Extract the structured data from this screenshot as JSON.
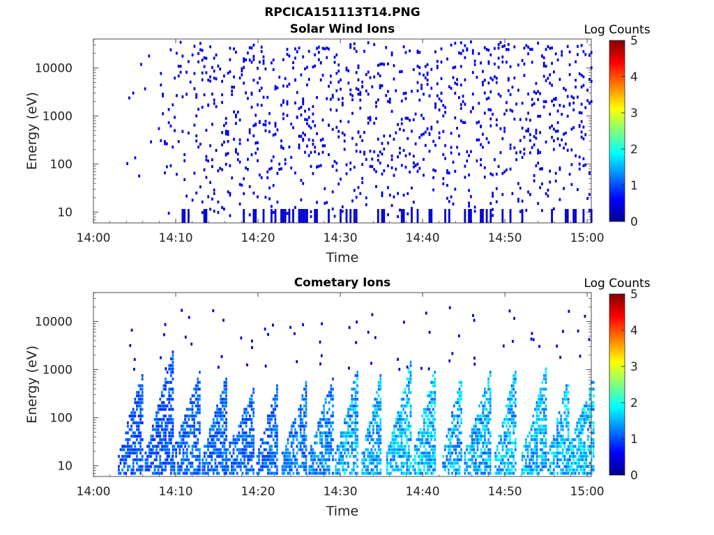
{
  "figure": {
    "file_title": "RPCICA151113T14.PNG",
    "colors": {
      "background": "#ffffff",
      "axis": "#222222",
      "low_count": "#000080"
    },
    "colormap": "jet"
  },
  "chart_data": [
    {
      "type": "heatmap",
      "title": "Solar Wind Ions",
      "xlabel": "Time",
      "ylabel": "Energy (eV)",
      "x_ticks": [
        "14:00",
        "14:10",
        "14:20",
        "14:30",
        "14:40",
        "14:50",
        "15:00"
      ],
      "x_range_minutes": [
        0,
        60.5
      ],
      "y_ticks": [
        10,
        100,
        1000,
        10000
      ],
      "y_tick_labels": [
        "10",
        "100",
        "1000",
        "10000"
      ],
      "y_scale": "log",
      "y_range": [
        6,
        40000
      ],
      "colorbar": {
        "title": "Log Counts",
        "ticks": [
          "0",
          "1",
          "2",
          "3",
          "4",
          "5"
        ],
        "range": [
          0,
          5
        ]
      },
      "description_of_cells": "sparse scattered single-count cells from ~14:04 to 15:00, 8 eV to 35000 eV, mostly at Log Counts 0 (dark blue)",
      "cells_log_counts": 0,
      "time_start_min": 4,
      "time_end_min": 60.5,
      "density": "sparse"
    },
    {
      "type": "heatmap",
      "title": "Cometary Ions",
      "xlabel": "Time",
      "ylabel": "Energy (eV)",
      "x_ticks": [
        "14:00",
        "14:10",
        "14:20",
        "14:30",
        "14:40",
        "14:50",
        "15:00"
      ],
      "x_range_minutes": [
        0,
        60.5
      ],
      "y_ticks": [
        10,
        100,
        1000,
        10000
      ],
      "y_tick_labels": [
        "10",
        "100",
        "1000",
        "10000"
      ],
      "y_scale": "log",
      "y_range": [
        6,
        40000
      ],
      "colorbar": {
        "title": "Log Counts",
        "ticks": [
          "0",
          "1",
          "2",
          "3",
          "4",
          "5"
        ],
        "range": [
          0,
          5
        ]
      },
      "bursts_minutes": [
        4.8,
        8.3,
        11.6,
        15.0,
        18.2,
        21.3,
        24.7,
        28.0,
        31.0,
        34.0,
        37.5,
        40.5,
        43.8,
        47.0,
        50.3,
        53.8,
        56.8,
        59.5
      ],
      "burst_peak_energy_ev": [
        900,
        2500,
        1000,
        800,
        500,
        500,
        600,
        900,
        1200,
        900,
        2000,
        1500,
        900,
        1000,
        1200,
        1100,
        900,
        800
      ],
      "burst_peak_log_counts": [
        0.8,
        0.8,
        0.9,
        0.9,
        0.9,
        0.9,
        1.0,
        1.1,
        1.3,
        1.3,
        1.4,
        1.4,
        1.3,
        1.3,
        1.4,
        1.4,
        1.4,
        1.5
      ],
      "time_start_min": 4,
      "time_end_min": 60.5
    }
  ]
}
